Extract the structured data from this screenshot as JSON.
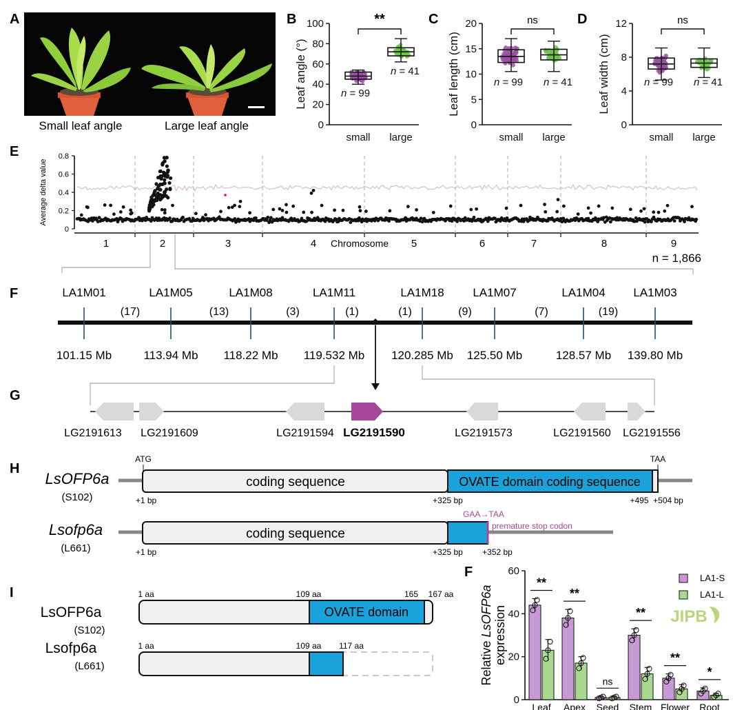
{
  "colors": {
    "small": "#9b4fa6",
    "large": "#6cc24a",
    "purple_highlight": "#a6479a",
    "gene_gray": "#d9d9d9",
    "domain_blue": "#1aa3db",
    "la1s_fill": "#c79ad3",
    "la1l_fill": "#a9d98e",
    "pink_threshold": "#d6b0d0",
    "watermark": "#b9d67a"
  },
  "panel_letters": {
    "A": "A",
    "B": "B",
    "C": "C",
    "D": "D",
    "E": "E",
    "F": "F",
    "G": "G",
    "H": "H",
    "I": "I",
    "F2": "F"
  },
  "panel_a": {
    "caption_small": "Small leaf angle",
    "caption_large": "Large leaf angle"
  },
  "boxplots": [
    {
      "id": "B",
      "ylabel": "Leaf angle (°)",
      "yticks": [
        "0",
        "20",
        "40",
        "60",
        "80",
        "100"
      ],
      "ymax": 100,
      "categories": [
        "small",
        "large"
      ],
      "signif": "**",
      "n_labels": [
        "n = 99",
        "n = 41"
      ],
      "chart_data": {
        "type": "box",
        "small": {
          "min": 40,
          "q1": 45,
          "median": 48,
          "q3": 52,
          "max": 54
        },
        "large": {
          "min": 62,
          "q1": 68,
          "median": 72,
          "q3": 76,
          "max": 85
        }
      }
    },
    {
      "id": "C",
      "ylabel": "Leaf length (cm)",
      "yticks": [
        "0",
        "5",
        "10",
        "15",
        "20"
      ],
      "ymax": 20,
      "categories": [
        "small",
        "large"
      ],
      "signif": "ns",
      "n_labels": [
        "n = 99",
        "n = 41"
      ],
      "chart_data": {
        "type": "box",
        "small": {
          "min": 10.5,
          "q1": 12.3,
          "median": 13.5,
          "q3": 14.8,
          "max": 17
        },
        "large": {
          "min": 10.5,
          "q1": 12.8,
          "median": 13.8,
          "q3": 14.9,
          "max": 16.5
        }
      }
    },
    {
      "id": "D",
      "ylabel": "Leaf width (cm)",
      "yticks": [
        "0",
        "4",
        "8",
        "12"
      ],
      "ymax": 12,
      "categories": [
        "small",
        "large"
      ],
      "signif": "ns",
      "n_labels": [
        "n = 99",
        "n = 41"
      ],
      "chart_data": {
        "type": "box",
        "small": {
          "min": 5.3,
          "q1": 6.6,
          "median": 7.2,
          "q3": 7.9,
          "max": 9.1
        },
        "large": {
          "min": 5.6,
          "q1": 6.8,
          "median": 7.3,
          "q3": 7.8,
          "max": 9.1
        }
      }
    }
  ],
  "manhattan": {
    "ylabel": "Average delta value",
    "xlabel": "Chromosome",
    "yticks": [
      "0",
      "0.2",
      "0.4",
      "0.6",
      "0.8"
    ],
    "chromosomes": [
      "1",
      "2",
      "3",
      "4",
      "5",
      "6",
      "7",
      "8",
      "9"
    ],
    "n_label": "n = 1,866",
    "chart_data": {
      "type": "scatter",
      "baseline": 0.1,
      "threshold": 0.45,
      "peak_chromosome": "2",
      "peak_max": 0.78
    }
  },
  "panel_f": {
    "markers": [
      "LA1M01",
      "LA1M05",
      "LA1M08",
      "LA1M11",
      "LA1M18",
      "LA1M07",
      "LA1M04",
      "LA1M03"
    ],
    "recombinants": [
      "(17)",
      "(13)",
      "(3)",
      "(1)",
      "(1)",
      "(9)",
      "(7)",
      "(19)"
    ],
    "positions": [
      "101.15 Mb",
      "113.94 Mb",
      "118.22 Mb",
      "119.532 Mb",
      "120.285 Mb",
      "125.50 Mb",
      "128.57 Mb",
      "139.80 Mb"
    ]
  },
  "panel_g": {
    "genes": [
      "LG2191613",
      "LG2191609",
      "LG2191594",
      "LG2191590",
      "LG2191573",
      "LG2191560",
      "LG2191556"
    ],
    "highlight": "LG2191590"
  },
  "panel_h": {
    "gene1_name": "LsOFP6a",
    "gene1_line": "(S102)",
    "gene2_name": "Lsofp6a",
    "gene2_line": "(L661)",
    "atg": "ATG",
    "taa": "TAA",
    "coding": "coding sequence",
    "ovate_coding": "OVATE domain coding sequence",
    "bp1": "+1 bp",
    "bp325": "+325 bp",
    "bp495": "+495",
    "bp504": "+504 bp",
    "bp352": "+352 bp",
    "mutation": "GAA→TAA",
    "stop": "premature stop codon"
  },
  "panel_i": {
    "prot1_name": "LsOFP6a",
    "prot1_line": "(S102)",
    "prot2_name": "Lsofp6a",
    "prot2_line": "(L661)",
    "aa1": "1 aa",
    "aa109": "109 aa",
    "aa165": "165",
    "aa167": "167 aa",
    "aa117": "117 aa",
    "domain": "OVATE domain"
  },
  "expression": {
    "ylabel_prefix": "Relative ",
    "ylabel_gene": "LsOFP6a",
    "ylabel_suffix": "expression",
    "yticks": [
      "0",
      "20",
      "40",
      "60"
    ],
    "ymax": 60,
    "legend": [
      "LA1-S",
      "LA1-L"
    ],
    "categories": [
      "Leaf",
      "Apex",
      "Seed",
      "Stem",
      "Flower",
      "Root"
    ],
    "signif": [
      "**",
      "**",
      "ns",
      "**",
      "**",
      "*"
    ],
    "chart_data": {
      "type": "bar",
      "categories": [
        "Leaf",
        "Apex",
        "Seed",
        "Stem",
        "Flower",
        "Root"
      ],
      "series": [
        {
          "name": "LA1-S",
          "values": [
            44,
            38,
            1,
            30,
            10,
            4
          ],
          "errors": [
            3,
            4,
            0.5,
            3,
            2,
            1.5
          ]
        },
        {
          "name": "LA1-L",
          "values": [
            23,
            17,
            1,
            12,
            5,
            2
          ],
          "errors": [
            5,
            3,
            0.5,
            3,
            2,
            1
          ]
        }
      ],
      "ylim": [
        0,
        60
      ]
    }
  },
  "watermark": "JIPB"
}
